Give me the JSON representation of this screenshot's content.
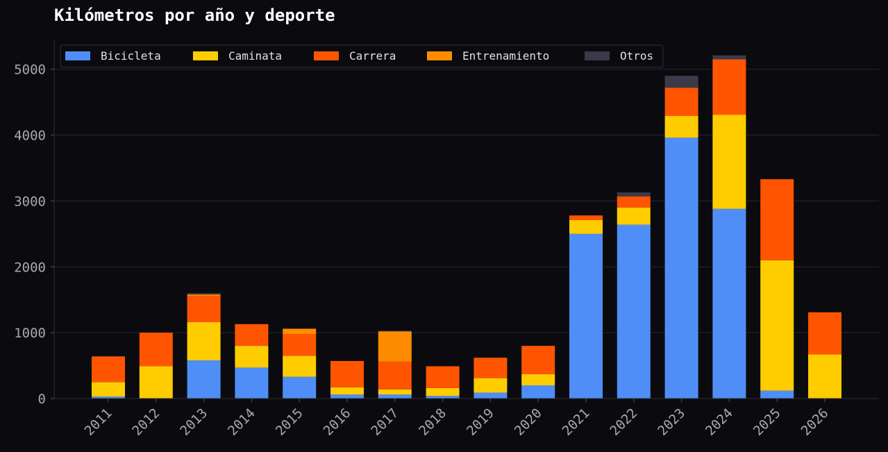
{
  "chart_data": {
    "type": "bar",
    "stacked": true,
    "title": "Kilómetros por año y deporte",
    "xlabel": "",
    "ylabel": "",
    "ylim": [
      0,
      5450
    ],
    "yticks": [
      0,
      1000,
      2000,
      3000,
      4000,
      5000
    ],
    "grid": true,
    "legend": "top-left",
    "categories": [
      "2011",
      "2012",
      "2013",
      "2014",
      "2015",
      "2016",
      "2017",
      "2018",
      "2019",
      "2020",
      "2021",
      "2022",
      "2023",
      "2024",
      "2025",
      "2026"
    ],
    "series": [
      {
        "name": "Bicicleta",
        "color": "#4f8ef7",
        "values": [
          30,
          0,
          580,
          470,
          330,
          60,
          60,
          40,
          90,
          200,
          2500,
          2640,
          3960,
          2880,
          120,
          0
        ]
      },
      {
        "name": "Caminata",
        "color": "#ffcc00",
        "values": [
          220,
          490,
          580,
          330,
          320,
          110,
          80,
          120,
          220,
          170,
          210,
          260,
          330,
          1430,
          1980,
          670
        ]
      },
      {
        "name": "Carrera",
        "color": "#ff5500",
        "values": [
          390,
          510,
          400,
          330,
          330,
          400,
          420,
          330,
          310,
          430,
          70,
          170,
          430,
          840,
          1230,
          640
        ]
      },
      {
        "name": "Entrenamiento",
        "color": "#ff8c00",
        "values": [
          0,
          0,
          20,
          0,
          80,
          0,
          460,
          0,
          0,
          0,
          0,
          0,
          0,
          0,
          0,
          0
        ]
      },
      {
        "name": "Otros",
        "color": "#3a3a4a",
        "values": [
          0,
          0,
          20,
          0,
          0,
          0,
          10,
          0,
          0,
          0,
          0,
          60,
          180,
          60,
          0,
          0
        ]
      }
    ]
  }
}
